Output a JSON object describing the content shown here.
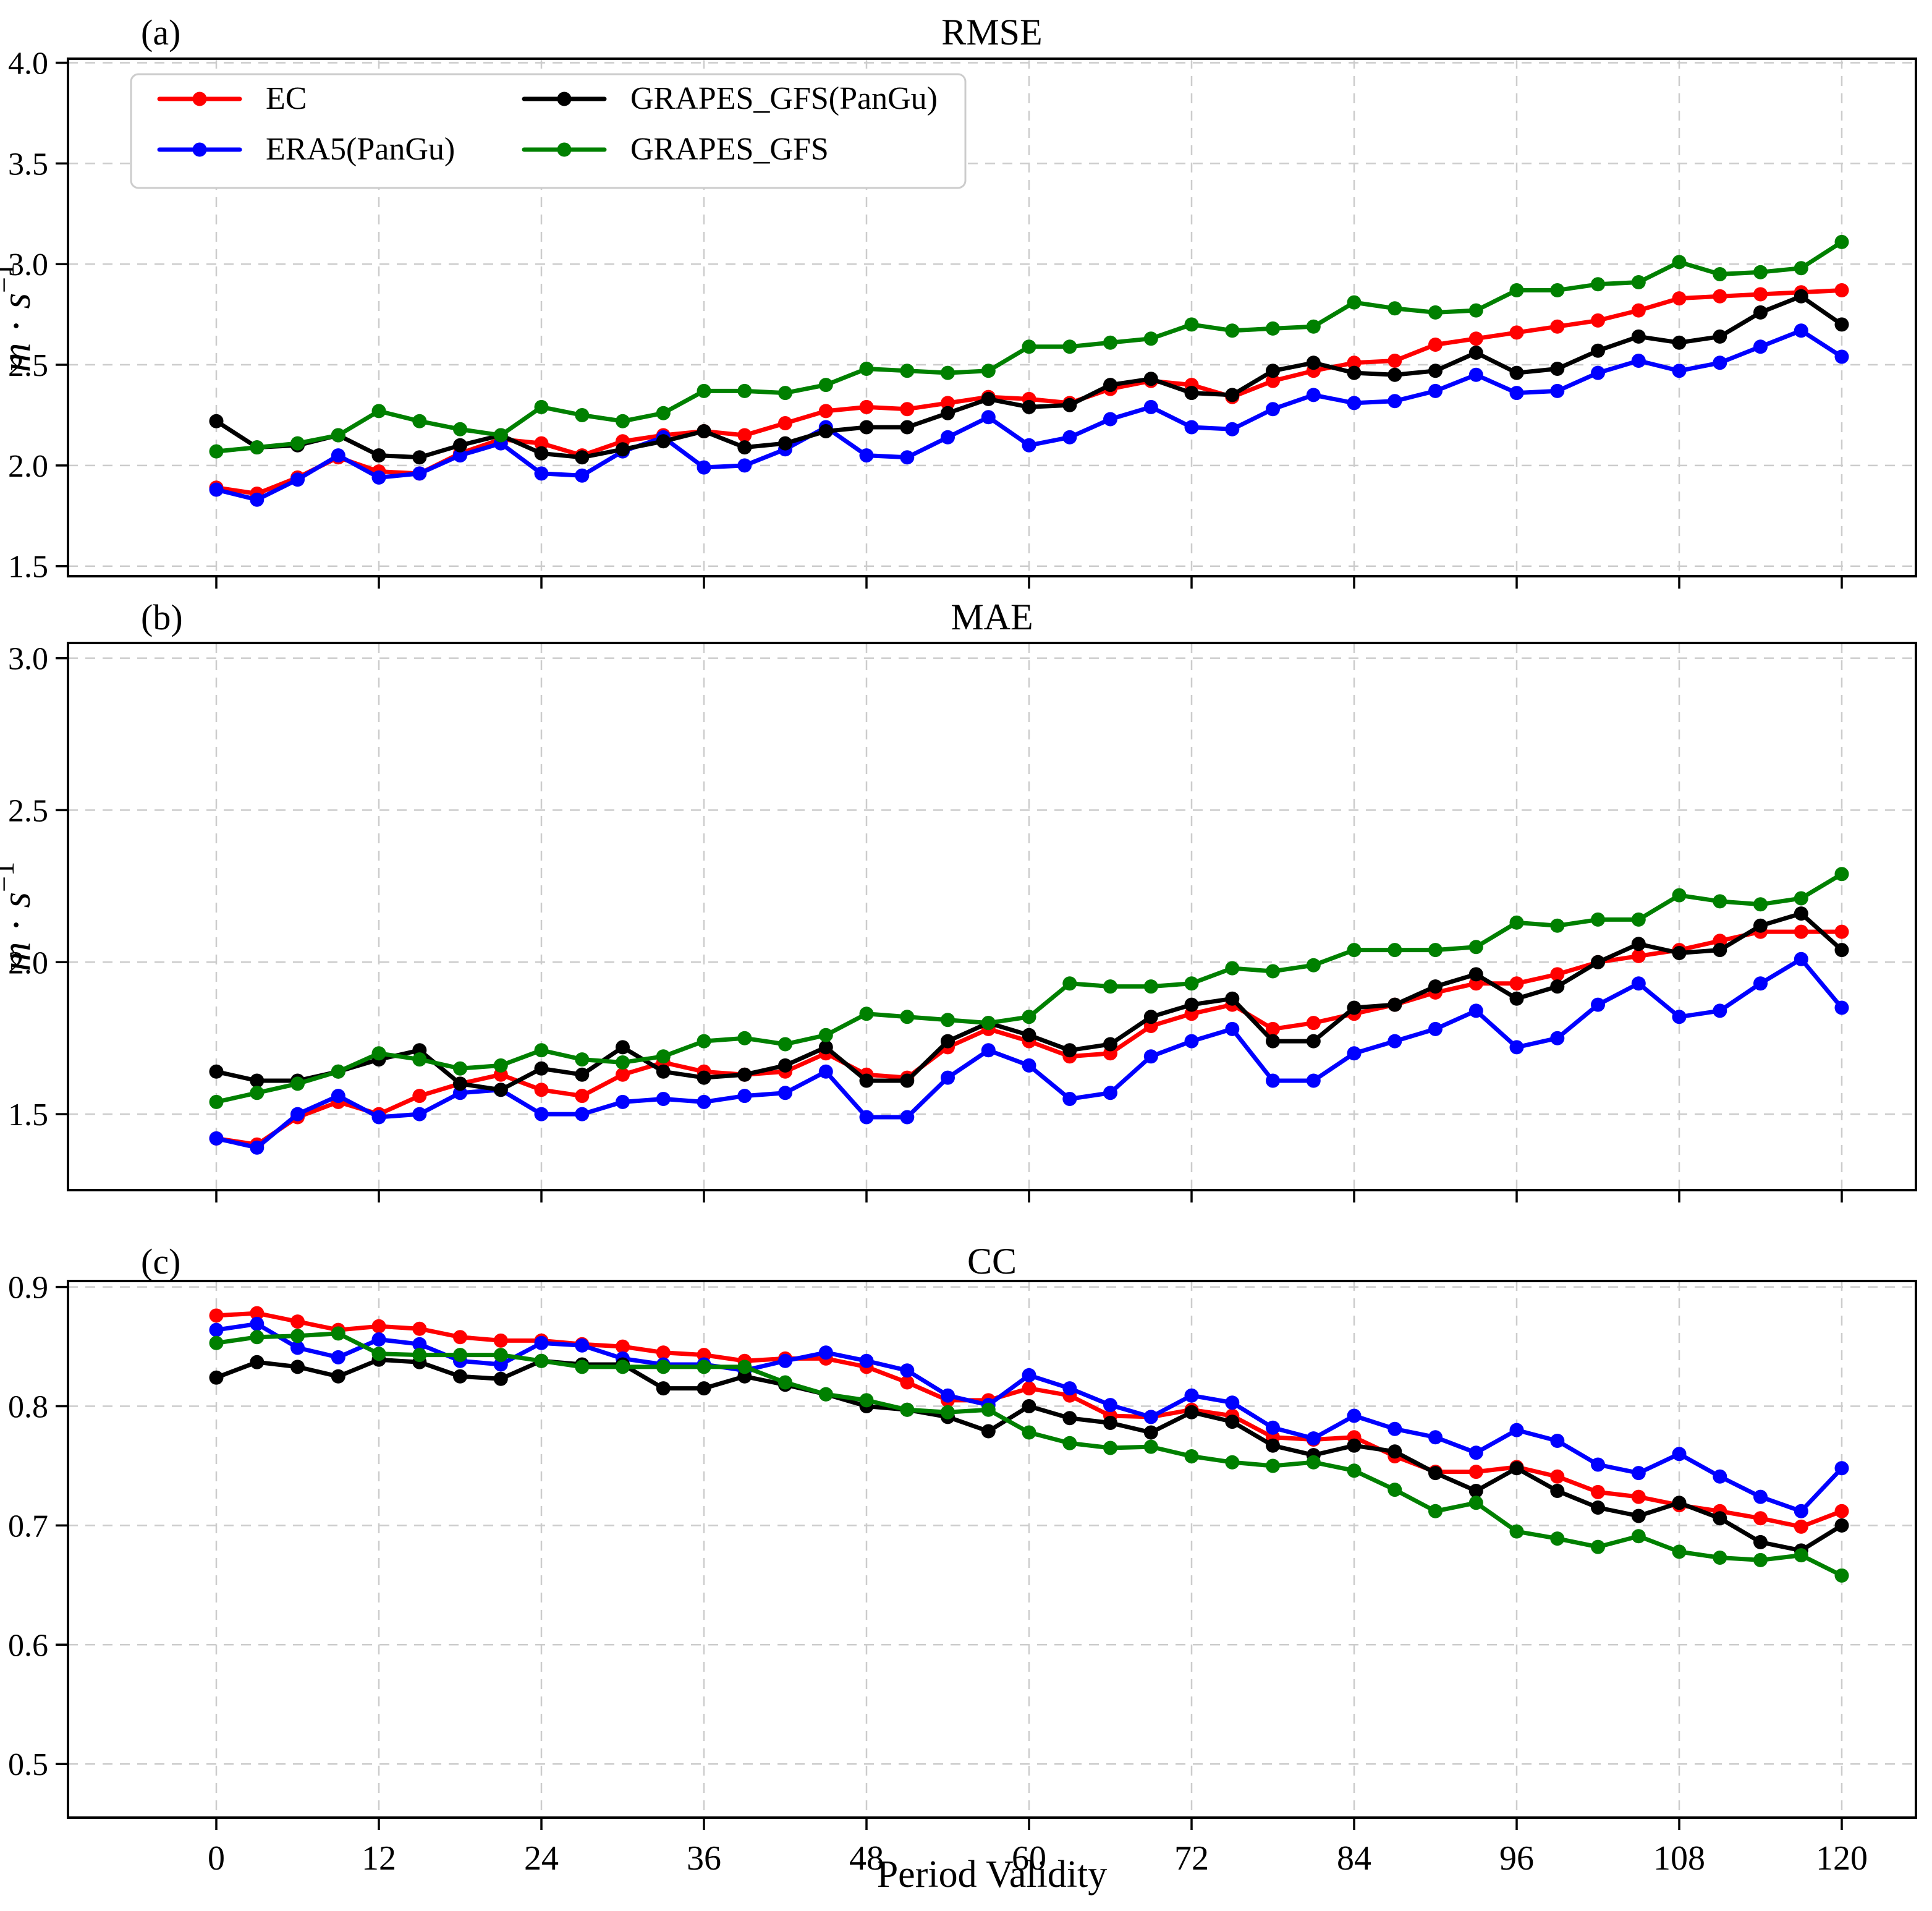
{
  "figure": {
    "xlabel": "Period Validity",
    "ylabel": {
      "base_italic": "m",
      "dot": "·",
      "s_italic": "s",
      "exponent": "−1"
    },
    "background": "#ffffff",
    "grid_color": "#cccccc",
    "axis_color": "#000000"
  },
  "legend": {
    "position": "upper-left-panel-a",
    "entries": [
      {
        "label": "EC",
        "color": "#ff0000"
      },
      {
        "label": "ERA5(PanGu)",
        "color": "#0000ff"
      },
      {
        "label": "GRAPES_GFS(PanGu)",
        "color": "#000000"
      },
      {
        "label": "GRAPES_GFS",
        "color": "#008000"
      }
    ]
  },
  "chart_data": [
    {
      "type": "line",
      "panel_letter": "(a)",
      "title": "RMSE",
      "ylabel_units": "m·s⁻¹",
      "x": [
        0,
        3,
        6,
        9,
        12,
        15,
        18,
        21,
        24,
        27,
        30,
        33,
        36,
        39,
        42,
        45,
        48,
        51,
        54,
        57,
        60,
        63,
        66,
        69,
        72,
        75,
        78,
        81,
        84,
        87,
        90,
        93,
        96,
        99,
        102,
        105,
        108,
        111,
        114,
        117,
        120
      ],
      "xticks": [
        0,
        12,
        24,
        36,
        48,
        60,
        72,
        84,
        96,
        108,
        120
      ],
      "yticks": [
        4.0,
        3.5,
        3.0,
        2.5,
        2.0,
        1.5
      ],
      "ylim": [
        1.45,
        4.02
      ],
      "grid": true,
      "legend_position": "upper left",
      "series": [
        {
          "name": "EC",
          "color": "#ff0000",
          "values": [
            1.89,
            1.86,
            1.94,
            2.04,
            1.97,
            1.96,
            2.06,
            2.13,
            2.11,
            2.05,
            2.12,
            2.15,
            2.17,
            2.15,
            2.21,
            2.27,
            2.29,
            2.28,
            2.31,
            2.34,
            2.33,
            2.31,
            2.38,
            2.42,
            2.4,
            2.34,
            2.42,
            2.47,
            2.51,
            2.52,
            2.6,
            2.63,
            2.66,
            2.69,
            2.72,
            2.77,
            2.83,
            2.84,
            2.85,
            2.86,
            2.87
          ]
        },
        {
          "name": "ERA5(PanGu)",
          "color": "#0000ff",
          "values": [
            1.88,
            1.83,
            1.93,
            2.05,
            1.94,
            1.96,
            2.05,
            2.11,
            1.96,
            1.95,
            2.07,
            2.14,
            1.99,
            2.0,
            2.08,
            2.19,
            2.05,
            2.04,
            2.14,
            2.24,
            2.1,
            2.14,
            2.23,
            2.29,
            2.19,
            2.18,
            2.28,
            2.35,
            2.31,
            2.32,
            2.37,
            2.45,
            2.36,
            2.37,
            2.46,
            2.52,
            2.47,
            2.51,
            2.59,
            2.67,
            2.54
          ]
        },
        {
          "name": "GRAPES_GFS(PanGu)",
          "color": "#000000",
          "values": [
            2.22,
            2.09,
            2.1,
            2.15,
            2.05,
            2.04,
            2.1,
            2.15,
            2.06,
            2.04,
            2.08,
            2.12,
            2.17,
            2.09,
            2.11,
            2.17,
            2.19,
            2.19,
            2.26,
            2.33,
            2.29,
            2.3,
            2.4,
            2.43,
            2.36,
            2.35,
            2.47,
            2.51,
            2.46,
            2.45,
            2.47,
            2.56,
            2.46,
            2.48,
            2.57,
            2.64,
            2.61,
            2.64,
            2.76,
            2.84,
            2.7
          ]
        },
        {
          "name": "GRAPES_GFS",
          "color": "#008000",
          "values": [
            2.07,
            2.09,
            2.11,
            2.15,
            2.27,
            2.22,
            2.18,
            2.15,
            2.29,
            2.25,
            2.22,
            2.26,
            2.37,
            2.37,
            2.36,
            2.4,
            2.48,
            2.47,
            2.46,
            2.47,
            2.59,
            2.59,
            2.61,
            2.63,
            2.7,
            2.67,
            2.68,
            2.69,
            2.81,
            2.78,
            2.76,
            2.77,
            2.87,
            2.87,
            2.9,
            2.91,
            3.01,
            2.95,
            2.96,
            2.98,
            3.11
          ]
        }
      ]
    },
    {
      "type": "line",
      "panel_letter": "(b)",
      "title": "MAE",
      "ylabel_units": "m·s⁻¹",
      "x": [
        0,
        3,
        6,
        9,
        12,
        15,
        18,
        21,
        24,
        27,
        30,
        33,
        36,
        39,
        42,
        45,
        48,
        51,
        54,
        57,
        60,
        63,
        66,
        69,
        72,
        75,
        78,
        81,
        84,
        87,
        90,
        93,
        96,
        99,
        102,
        105,
        108,
        111,
        114,
        117,
        120
      ],
      "xticks": [
        0,
        12,
        24,
        36,
        48,
        60,
        72,
        84,
        96,
        108,
        120
      ],
      "yticks": [
        3.0,
        2.5,
        2.0,
        1.5
      ],
      "ylim": [
        1.25,
        3.05
      ],
      "grid": true,
      "series": [
        {
          "name": "EC",
          "color": "#ff0000",
          "values": [
            1.42,
            1.4,
            1.49,
            1.54,
            1.5,
            1.56,
            1.6,
            1.63,
            1.58,
            1.56,
            1.63,
            1.67,
            1.64,
            1.63,
            1.64,
            1.7,
            1.63,
            1.62,
            1.72,
            1.78,
            1.74,
            1.69,
            1.7,
            1.79,
            1.83,
            1.86,
            1.78,
            1.8,
            1.83,
            1.86,
            1.9,
            1.93,
            1.93,
            1.96,
            2.0,
            2.02,
            2.04,
            2.07,
            2.1,
            2.1,
            2.1
          ]
        },
        {
          "name": "ERA5(PanGu)",
          "color": "#0000ff",
          "values": [
            1.42,
            1.39,
            1.5,
            1.56,
            1.49,
            1.5,
            1.57,
            1.58,
            1.5,
            1.5,
            1.54,
            1.55,
            1.54,
            1.56,
            1.57,
            1.64,
            1.49,
            1.49,
            1.62,
            1.71,
            1.66,
            1.55,
            1.57,
            1.69,
            1.74,
            1.78,
            1.61,
            1.61,
            1.7,
            1.74,
            1.78,
            1.84,
            1.72,
            1.75,
            1.86,
            1.93,
            1.82,
            1.84,
            1.93,
            2.01,
            1.85
          ]
        },
        {
          "name": "GRAPES_GFS(PanGu)",
          "color": "#000000",
          "values": [
            1.64,
            1.61,
            1.61,
            1.64,
            1.68,
            1.71,
            1.6,
            1.58,
            1.65,
            1.63,
            1.72,
            1.64,
            1.62,
            1.63,
            1.66,
            1.72,
            1.61,
            1.61,
            1.74,
            1.8,
            1.76,
            1.71,
            1.73,
            1.82,
            1.86,
            1.88,
            1.74,
            1.74,
            1.85,
            1.86,
            1.92,
            1.96,
            1.88,
            1.92,
            2.0,
            2.06,
            2.03,
            2.04,
            2.12,
            2.16,
            2.04
          ]
        },
        {
          "name": "GRAPES_GFS",
          "color": "#008000",
          "values": [
            1.54,
            1.57,
            1.6,
            1.64,
            1.7,
            1.68,
            1.65,
            1.66,
            1.71,
            1.68,
            1.67,
            1.69,
            1.74,
            1.75,
            1.73,
            1.76,
            1.83,
            1.82,
            1.81,
            1.8,
            1.82,
            1.93,
            1.92,
            1.92,
            1.93,
            1.98,
            1.97,
            1.99,
            2.04,
            2.04,
            2.04,
            2.05,
            2.13,
            2.12,
            2.14,
            2.14,
            2.22,
            2.2,
            2.19,
            2.21,
            2.29
          ]
        }
      ]
    },
    {
      "type": "line",
      "panel_letter": "(c)",
      "title": "CC",
      "x": [
        0,
        3,
        6,
        9,
        12,
        15,
        18,
        21,
        24,
        27,
        30,
        33,
        36,
        39,
        42,
        45,
        48,
        51,
        54,
        57,
        60,
        63,
        66,
        69,
        72,
        75,
        78,
        81,
        84,
        87,
        90,
        93,
        96,
        99,
        102,
        105,
        108,
        111,
        114,
        117,
        120
      ],
      "xticks": [
        0,
        12,
        24,
        36,
        48,
        60,
        72,
        84,
        96,
        108,
        120
      ],
      "yticks": [
        0.9,
        0.8,
        0.7,
        0.6,
        0.5
      ],
      "ylim": [
        0.455,
        0.905
      ],
      "grid": true,
      "series": [
        {
          "name": "EC",
          "color": "#ff0000",
          "values": [
            0.876,
            0.878,
            0.871,
            0.864,
            0.867,
            0.865,
            0.858,
            0.855,
            0.855,
            0.852,
            0.85,
            0.845,
            0.843,
            0.838,
            0.84,
            0.84,
            0.833,
            0.82,
            0.805,
            0.805,
            0.815,
            0.809,
            0.792,
            0.791,
            0.797,
            0.792,
            0.774,
            0.772,
            0.774,
            0.758,
            0.745,
            0.745,
            0.749,
            0.741,
            0.728,
            0.724,
            0.717,
            0.712,
            0.706,
            0.699,
            0.712
          ]
        },
        {
          "name": "ERA5(PanGu)",
          "color": "#0000ff",
          "values": [
            0.864,
            0.869,
            0.849,
            0.841,
            0.856,
            0.852,
            0.838,
            0.835,
            0.853,
            0.851,
            0.84,
            0.835,
            0.835,
            0.83,
            0.838,
            0.845,
            0.838,
            0.83,
            0.809,
            0.801,
            0.826,
            0.815,
            0.801,
            0.791,
            0.809,
            0.803,
            0.782,
            0.773,
            0.792,
            0.781,
            0.774,
            0.761,
            0.78,
            0.771,
            0.751,
            0.744,
            0.76,
            0.741,
            0.724,
            0.712,
            0.748
          ]
        },
        {
          "name": "GRAPES_GFS(PanGu)",
          "color": "#000000",
          "values": [
            0.824,
            0.837,
            0.833,
            0.825,
            0.839,
            0.837,
            0.825,
            0.823,
            0.838,
            0.835,
            0.835,
            0.815,
            0.815,
            0.825,
            0.818,
            0.81,
            0.8,
            0.797,
            0.791,
            0.779,
            0.8,
            0.79,
            0.786,
            0.778,
            0.795,
            0.787,
            0.767,
            0.759,
            0.767,
            0.762,
            0.744,
            0.729,
            0.748,
            0.729,
            0.715,
            0.708,
            0.719,
            0.706,
            0.686,
            0.679,
            0.7
          ]
        },
        {
          "name": "GRAPES_GFS",
          "color": "#008000",
          "values": [
            0.853,
            0.858,
            0.859,
            0.861,
            0.844,
            0.843,
            0.843,
            0.843,
            0.838,
            0.833,
            0.833,
            0.833,
            0.833,
            0.833,
            0.82,
            0.81,
            0.805,
            0.797,
            0.795,
            0.797,
            0.778,
            0.769,
            0.765,
            0.766,
            0.758,
            0.753,
            0.75,
            0.753,
            0.746,
            0.73,
            0.712,
            0.719,
            0.695,
            0.689,
            0.682,
            0.691,
            0.678,
            0.673,
            0.671,
            0.675,
            0.658
          ]
        }
      ]
    }
  ]
}
